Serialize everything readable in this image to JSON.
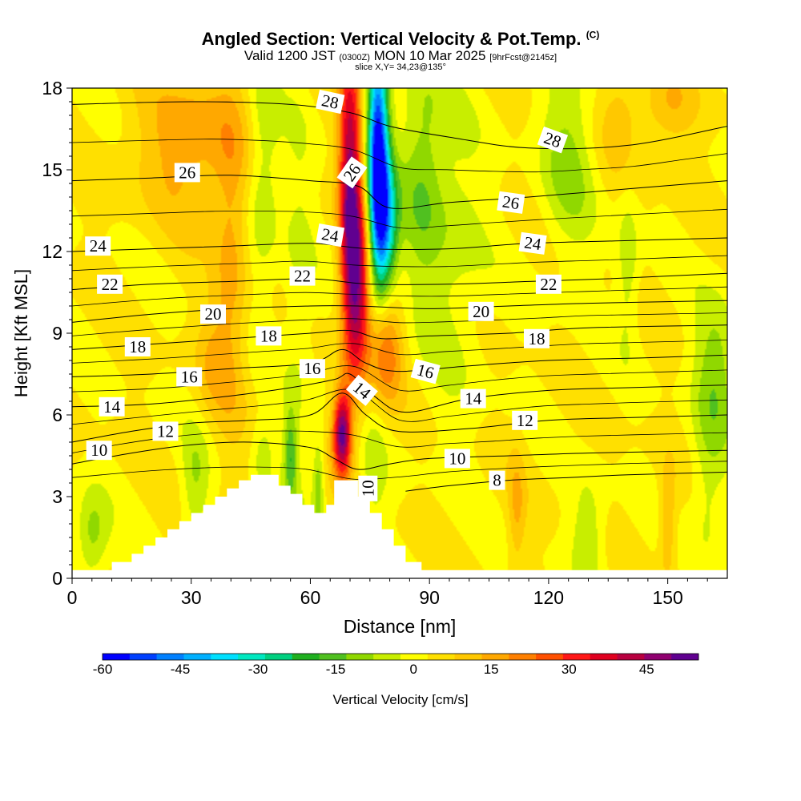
{
  "header": {
    "title": "Angled Section: Vertical Velocity & Pot.Temp.",
    "title_mark": "(C)",
    "subtitle_a": "Valid 1200 JST",
    "subtitle_b": "(0300Z)",
    "subtitle_c": "MON 10 Mar 2025",
    "subtitle_d": "[9hrFcst@2145z]",
    "slice": "slice X,Y= 34,23@135°"
  },
  "chart_data": {
    "type": "heatmap",
    "xlabel": "Distance [nm]",
    "ylabel": "Height [Kft MSL]",
    "xlim": [
      0,
      165
    ],
    "ylim": [
      0,
      18
    ],
    "xticks": [
      0,
      30,
      60,
      90,
      120,
      150
    ],
    "yticks": [
      0,
      3,
      6,
      9,
      12,
      15,
      18
    ],
    "colorbar": {
      "label": "Vertical Velocity [cm/s]",
      "ticks": [
        -60,
        -45,
        -30,
        -15,
        0,
        15,
        30,
        45
      ],
      "range": [
        -60,
        55
      ],
      "colors": [
        "#0000ff",
        "#0040ff",
        "#0080ff",
        "#00b0ff",
        "#00e0ff",
        "#00e8c0",
        "#00d080",
        "#20b020",
        "#50c020",
        "#90d800",
        "#c8ee00",
        "#ffff00",
        "#ffe000",
        "#ffc800",
        "#ffa800",
        "#ff8000",
        "#ff5000",
        "#ff1818",
        "#e00020",
        "#b80040",
        "#900070",
        "#600090"
      ]
    },
    "terrain": [
      [
        0,
        0.3
      ],
      [
        10,
        0.3
      ],
      [
        10,
        0.6
      ],
      [
        15,
        0.6
      ],
      [
        15,
        0.9
      ],
      [
        18,
        0.9
      ],
      [
        18,
        1.2
      ],
      [
        21,
        1.2
      ],
      [
        21,
        1.5
      ],
      [
        24,
        1.5
      ],
      [
        24,
        1.8
      ],
      [
        27,
        1.8
      ],
      [
        27,
        2.1
      ],
      [
        30,
        2.1
      ],
      [
        30,
        2.4
      ],
      [
        33,
        2.4
      ],
      [
        33,
        2.7
      ],
      [
        36,
        2.7
      ],
      [
        36,
        3.0
      ],
      [
        39,
        3.0
      ],
      [
        39,
        3.3
      ],
      [
        42,
        3.3
      ],
      [
        42,
        3.6
      ],
      [
        45,
        3.6
      ],
      [
        45,
        3.8
      ],
      [
        52,
        3.8
      ],
      [
        52,
        3.4
      ],
      [
        55,
        3.4
      ],
      [
        55,
        3.1
      ],
      [
        58,
        3.1
      ],
      [
        58,
        2.7
      ],
      [
        61,
        2.7
      ],
      [
        61,
        2.4
      ],
      [
        64,
        2.4
      ],
      [
        64,
        2.7
      ],
      [
        66,
        2.7
      ],
      [
        66,
        3.6
      ],
      [
        72,
        3.6
      ],
      [
        72,
        3.0
      ],
      [
        75,
        3.0
      ],
      [
        75,
        2.4
      ],
      [
        78,
        2.4
      ],
      [
        78,
        1.8
      ],
      [
        81,
        1.8
      ],
      [
        81,
        1.2
      ],
      [
        84,
        1.2
      ],
      [
        84,
        0.6
      ],
      [
        88,
        0.6
      ],
      [
        88,
        0.3
      ],
      [
        165,
        0.3
      ]
    ],
    "isentropes": [
      {
        "level": 8,
        "pts": [
          [
            84,
            3.2
          ],
          [
            95,
            3.4
          ],
          [
            110,
            3.6
          ],
          [
            125,
            3.7
          ],
          [
            140,
            3.8
          ],
          [
            165,
            3.9
          ]
        ]
      },
      {
        "level": 10,
        "pts": [
          [
            0,
            4.2
          ],
          [
            15,
            4.6
          ],
          [
            30,
            4.9
          ],
          [
            45,
            5.0
          ],
          [
            60,
            4.8
          ],
          [
            66,
            4.4
          ],
          [
            72,
            4.0
          ],
          [
            80,
            4.2
          ],
          [
            90,
            4.4
          ],
          [
            110,
            4.5
          ],
          [
            130,
            4.6
          ],
          [
            165,
            4.7
          ]
        ]
      },
      {
        "level": 12,
        "pts": [
          [
            0,
            5.0
          ],
          [
            15,
            5.4
          ],
          [
            30,
            5.7
          ],
          [
            45,
            5.8
          ],
          [
            60,
            6.0
          ],
          [
            68,
            6.8
          ],
          [
            74,
            6.0
          ],
          [
            82,
            5.4
          ],
          [
            100,
            5.5
          ],
          [
            120,
            5.8
          ],
          [
            140,
            5.9
          ],
          [
            165,
            6.0
          ]
        ]
      },
      {
        "level": 14,
        "pts": [
          [
            0,
            6.3
          ],
          [
            20,
            6.4
          ],
          [
            40,
            6.7
          ],
          [
            55,
            7.0
          ],
          [
            66,
            7.3
          ],
          [
            70,
            7.5
          ],
          [
            76,
            6.7
          ],
          [
            84,
            6.1
          ],
          [
            100,
            6.6
          ],
          [
            120,
            6.9
          ],
          [
            140,
            7.0
          ],
          [
            165,
            7.1
          ]
        ]
      },
      {
        "level": 16,
        "pts": [
          [
            0,
            7.4
          ],
          [
            20,
            7.5
          ],
          [
            40,
            7.7
          ],
          [
            60,
            7.9
          ],
          [
            68,
            8.4
          ],
          [
            74,
            7.9
          ],
          [
            82,
            7.6
          ],
          [
            100,
            7.8
          ],
          [
            120,
            8.0
          ],
          [
            145,
            8.1
          ],
          [
            165,
            8.2
          ]
        ]
      },
      {
        "level": 18,
        "pts": [
          [
            0,
            8.4
          ],
          [
            20,
            8.6
          ],
          [
            40,
            8.8
          ],
          [
            60,
            9.0
          ],
          [
            70,
            9.1
          ],
          [
            78,
            8.8
          ],
          [
            90,
            8.9
          ],
          [
            110,
            9.0
          ],
          [
            130,
            9.2
          ],
          [
            165,
            9.3
          ]
        ]
      },
      {
        "level": 20,
        "pts": [
          [
            0,
            9.4
          ],
          [
            20,
            9.7
          ],
          [
            40,
            9.9
          ],
          [
            60,
            10.0
          ],
          [
            72,
            10.0
          ],
          [
            90,
            9.9
          ],
          [
            110,
            10.0
          ],
          [
            130,
            10.1
          ],
          [
            165,
            10.2
          ]
        ]
      },
      {
        "level": 22,
        "pts": [
          [
            0,
            10.6
          ],
          [
            20,
            10.8
          ],
          [
            40,
            10.9
          ],
          [
            60,
            11.0
          ],
          [
            75,
            10.8
          ],
          [
            95,
            10.8
          ],
          [
            115,
            10.9
          ],
          [
            135,
            11.0
          ],
          [
            165,
            11.2
          ]
        ]
      },
      {
        "level": 24,
        "pts": [
          [
            0,
            12.0
          ],
          [
            20,
            12.1
          ],
          [
            40,
            12.2
          ],
          [
            60,
            12.3
          ],
          [
            75,
            12.1
          ],
          [
            95,
            12.1
          ],
          [
            115,
            12.3
          ],
          [
            140,
            12.4
          ],
          [
            165,
            12.5
          ]
        ]
      },
      {
        "level": 26,
        "pts": [
          [
            0,
            14.6
          ],
          [
            20,
            14.7
          ],
          [
            40,
            14.8
          ],
          [
            60,
            14.6
          ],
          [
            72,
            14.4
          ],
          [
            80,
            13.6
          ],
          [
            95,
            13.8
          ],
          [
            115,
            14.0
          ],
          [
            140,
            14.3
          ],
          [
            165,
            14.6
          ]
        ]
      },
      {
        "level": 28,
        "pts": [
          [
            0,
            17.4
          ],
          [
            30,
            17.5
          ],
          [
            55,
            17.4
          ],
          [
            70,
            17.1
          ],
          [
            80,
            16.6
          ],
          [
            95,
            16.2
          ],
          [
            115,
            15.8
          ],
          [
            140,
            15.9
          ],
          [
            165,
            16.6
          ]
        ]
      }
    ],
    "contour_labels": [
      {
        "text": "28",
        "x": 65,
        "y": 17.5,
        "rot": 12
      },
      {
        "text": "26",
        "x": 29,
        "y": 14.9,
        "rot": 0
      },
      {
        "text": "26",
        "x": 70.5,
        "y": 14.9,
        "rot": -55
      },
      {
        "text": "28",
        "x": 121,
        "y": 16.1,
        "rot": 20
      },
      {
        "text": "26",
        "x": 110.5,
        "y": 13.8,
        "rot": 8
      },
      {
        "text": "24",
        "x": 6.5,
        "y": 12.2,
        "rot": 0
      },
      {
        "text": "24",
        "x": 65,
        "y": 12.6,
        "rot": 10
      },
      {
        "text": "24",
        "x": 116,
        "y": 12.3,
        "rot": 8
      },
      {
        "text": "22",
        "x": 9.5,
        "y": 10.8,
        "rot": 0
      },
      {
        "text": "22",
        "x": 58,
        "y": 11.1,
        "rot": 0
      },
      {
        "text": "22",
        "x": 120,
        "y": 10.8,
        "rot": 0
      },
      {
        "text": "20",
        "x": 35.5,
        "y": 9.7,
        "rot": 0
      },
      {
        "text": "20",
        "x": 103,
        "y": 9.8,
        "rot": 0
      },
      {
        "text": "18",
        "x": 16.5,
        "y": 8.5,
        "rot": 0
      },
      {
        "text": "18",
        "x": 49.5,
        "y": 8.9,
        "rot": 0
      },
      {
        "text": "18",
        "x": 117,
        "y": 8.8,
        "rot": 0
      },
      {
        "text": "16",
        "x": 29.5,
        "y": 7.4,
        "rot": 0
      },
      {
        "text": "16",
        "x": 60.5,
        "y": 7.7,
        "rot": 0
      },
      {
        "text": "16",
        "x": 89,
        "y": 7.6,
        "rot": 15
      },
      {
        "text": "14",
        "x": 10,
        "y": 6.3,
        "rot": 0
      },
      {
        "text": "14",
        "x": 73,
        "y": 6.9,
        "rot": 40
      },
      {
        "text": "14",
        "x": 101,
        "y": 6.6,
        "rot": 0
      },
      {
        "text": "12",
        "x": 23.5,
        "y": 5.4,
        "rot": 0
      },
      {
        "text": "12",
        "x": 114,
        "y": 5.8,
        "rot": 0
      },
      {
        "text": "10",
        "x": 6.8,
        "y": 4.7,
        "rot": 0
      },
      {
        "text": "10",
        "x": 97,
        "y": 4.4,
        "rot": 0
      },
      {
        "text": "10",
        "x": 74.5,
        "y": 3.3,
        "rot": -90
      },
      {
        "text": "8",
        "x": 107,
        "y": 3.6,
        "rot": 0
      }
    ],
    "velocity_features": [
      {
        "x": 68,
        "y": 5.3,
        "sx": 1.6,
        "sy": 1.1,
        "value": 48
      },
      {
        "x": 70,
        "y": 14.5,
        "sx": 2.0,
        "sy": 4.0,
        "value": 42
      },
      {
        "x": 72,
        "y": 10.5,
        "sx": 2.2,
        "sy": 2.5,
        "value": 32
      },
      {
        "x": 79,
        "y": 8.5,
        "sx": 3.0,
        "sy": 1.5,
        "value": 20
      },
      {
        "x": 77,
        "y": 15.5,
        "sx": 1.8,
        "sy": 3.0,
        "value": -62
      },
      {
        "x": 79,
        "y": 13.0,
        "sx": 2.2,
        "sy": 1.8,
        "value": -35
      },
      {
        "x": 30,
        "y": 16.0,
        "sx": 10,
        "sy": 2.0,
        "value": 14
      },
      {
        "x": 48,
        "y": 15.0,
        "sx": 3.0,
        "sy": 3.0,
        "value": -12
      },
      {
        "x": 57,
        "y": 10.5,
        "sx": 3.0,
        "sy": 6.0,
        "value": -6
      },
      {
        "x": 40,
        "y": 11.0,
        "sx": 3.0,
        "sy": 4.0,
        "value": 12
      },
      {
        "x": 88,
        "y": 15.0,
        "sx": 4.0,
        "sy": 3.0,
        "value": -14
      },
      {
        "x": 96,
        "y": 12.0,
        "sx": 6.0,
        "sy": 4.0,
        "value": -8
      },
      {
        "x": 125,
        "y": 15.5,
        "sx": 5.0,
        "sy": 2.5,
        "value": -12
      },
      {
        "x": 138,
        "y": 17.0,
        "sx": 4.0,
        "sy": 1.5,
        "value": 8
      },
      {
        "x": 150,
        "y": 17.3,
        "sx": 5.0,
        "sy": 1.0,
        "value": 10
      },
      {
        "x": 140,
        "y": 11.5,
        "sx": 2.0,
        "sy": 2.0,
        "value": -10
      },
      {
        "x": 162,
        "y": 7.5,
        "sx": 4.0,
        "sy": 2.0,
        "value": -14
      },
      {
        "x": 160,
        "y": 3.0,
        "sx": 3.0,
        "sy": 2.0,
        "value": -8
      },
      {
        "x": 130,
        "y": 1.6,
        "sx": 3.0,
        "sy": 1.5,
        "value": -10
      },
      {
        "x": 5,
        "y": 1.5,
        "sx": 3.0,
        "sy": 1.2,
        "value": -14
      },
      {
        "x": 31,
        "y": 3.5,
        "sx": 2.5,
        "sy": 1.5,
        "value": -10
      },
      {
        "x": 48,
        "y": 4.5,
        "sx": 2.0,
        "sy": 1.0,
        "value": -8
      },
      {
        "x": 55,
        "y": 4.5,
        "sx": 1.2,
        "sy": 1.2,
        "value": -18
      },
      {
        "x": 62,
        "y": 3.5,
        "sx": 1.0,
        "sy": 1.2,
        "value": -14
      },
      {
        "x": 76,
        "y": 3.8,
        "sx": 2.5,
        "sy": 1.5,
        "value": -8
      },
      {
        "x": 150,
        "y": 2.0,
        "sx": 1.5,
        "sy": 1.5,
        "value": 12
      },
      {
        "x": 112,
        "y": 2.5,
        "sx": 1.5,
        "sy": 1.5,
        "value": 10
      },
      {
        "x": 35,
        "y": 8.0,
        "sx": 3.0,
        "sy": 1.5,
        "value": 8
      }
    ]
  }
}
